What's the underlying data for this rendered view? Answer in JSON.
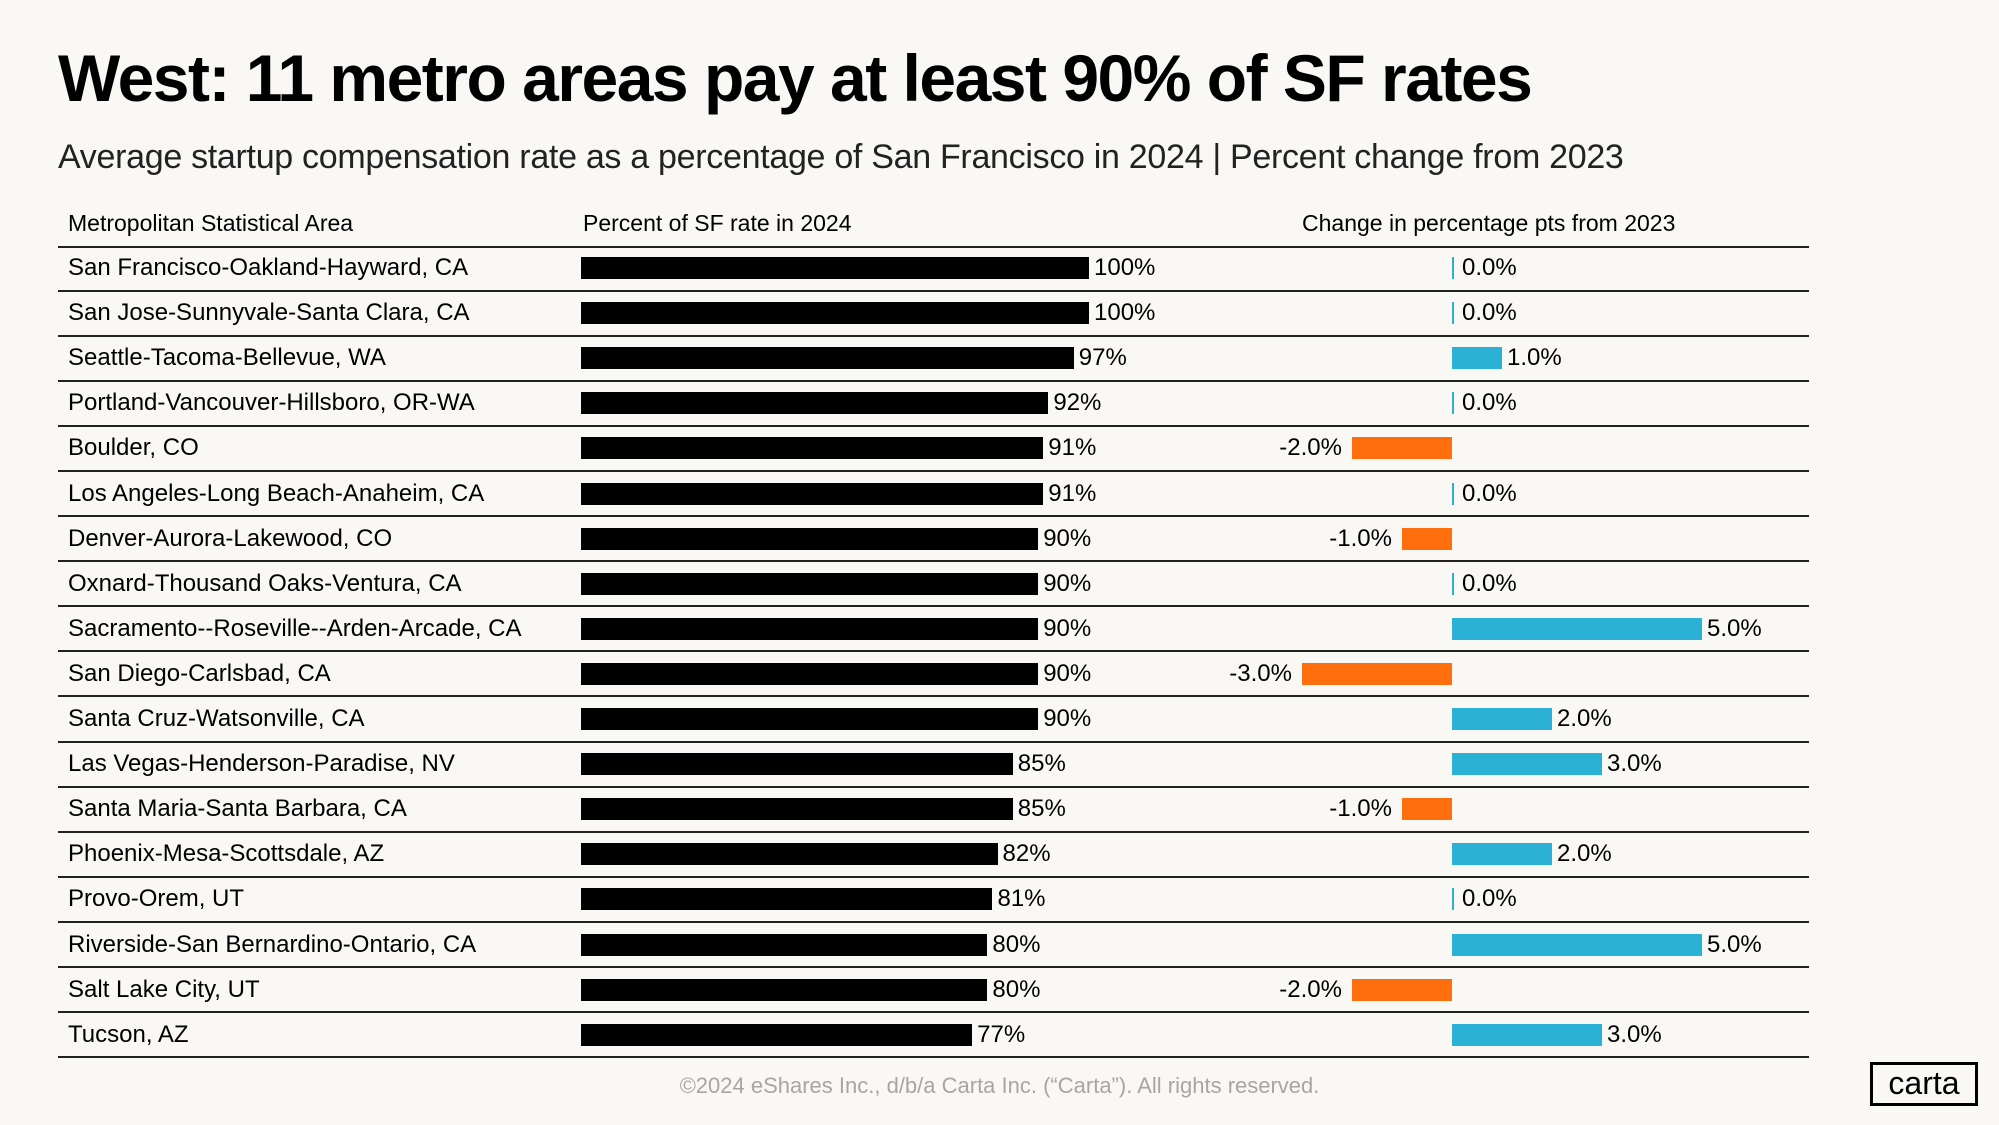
{
  "title": "West: 11 metro areas pay at least 90% of SF rates",
  "subtitle": "Average startup compensation rate as a percentage of San Francisco in 2024 | Percent change from 2023",
  "footer": "©2024 eShares Inc., d/b/a Carta Inc. (“Carta”). All rights reserved.",
  "logo": "carta",
  "colors": {
    "bar": "#000000",
    "positive": "#2bb0d6",
    "negative": "#ff6e0c",
    "background": "#faf8f4"
  },
  "chart_data": {
    "type": "table",
    "columns": [
      "Metropolitan Statistical Area",
      "Percent of SF rate in 2024",
      "Change in percentage pts from 2023"
    ],
    "categories": [
      "San Francisco-Oakland-Hayward, CA",
      "San Jose-Sunnyvale-Santa Clara, CA",
      "Seattle-Tacoma-Bellevue, WA",
      "Portland-Vancouver-Hillsboro, OR-WA",
      "Boulder, CO",
      "Los Angeles-Long Beach-Anaheim, CA",
      "Denver-Aurora-Lakewood, CO",
      "Oxnard-Thousand Oaks-Ventura, CA",
      "Sacramento--Roseville--Arden-Arcade, CA",
      "San Diego-Carlsbad, CA",
      "Santa Cruz-Watsonville, CA",
      "Las Vegas-Henderson-Paradise, NV",
      "Santa Maria-Santa Barbara, CA",
      "Phoenix-Mesa-Scottsdale, AZ",
      "Provo-Orem, UT",
      "Riverside-San Bernardino-Ontario, CA",
      "Salt Lake City, UT",
      "Tucson, AZ"
    ],
    "series": [
      {
        "values": [
          100,
          100,
          97,
          92,
          91,
          91,
          90,
          90,
          90,
          90,
          90,
          85,
          85,
          82,
          81,
          80,
          80,
          77
        ],
        "labels": [
          "100%",
          "100%",
          "97%",
          "92%",
          "91%",
          "91%",
          "90%",
          "90%",
          "90%",
          "90%",
          "90%",
          "85%",
          "85%",
          "82%",
          "81%",
          "80%",
          "80%",
          "77%"
        ]
      },
      {
        "values": [
          0,
          0,
          1,
          0,
          -2,
          0,
          -1,
          0,
          5,
          -3,
          2,
          3,
          -1,
          2,
          0,
          5,
          -2,
          3
        ],
        "labels": [
          "0.0%",
          "0.0%",
          "1.0%",
          "0.0%",
          "-2.0%",
          "0.0%",
          "-1.0%",
          "0.0%",
          "5.0%",
          "-3.0%",
          "2.0%",
          "3.0%",
          "-1.0%",
          "2.0%",
          "0.0%",
          "5.0%",
          "-2.0%",
          "3.0%"
        ]
      }
    ]
  }
}
